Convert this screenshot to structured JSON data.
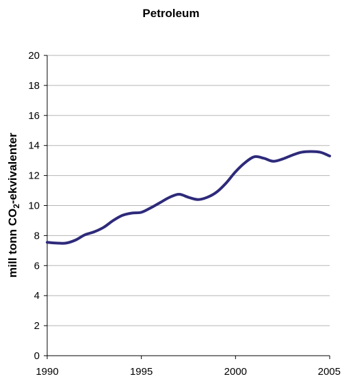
{
  "chart_data": {
    "type": "line",
    "title": "Petroleum",
    "ylabel_prefix": "mill tonn CO",
    "ylabel_subscript": "2",
    "ylabel_suffix": "-ekvivalenter",
    "xlabel": "",
    "xlim": [
      1990,
      2005
    ],
    "ylim": [
      0,
      20
    ],
    "x_ticks": [
      1990,
      1995,
      2000,
      2005
    ],
    "y_ticks": [
      0,
      2,
      4,
      6,
      8,
      10,
      12,
      14,
      16,
      18,
      20
    ],
    "grid": true,
    "line_color": "#2e2a7a",
    "series": [
      {
        "x": [
          1990,
          1990.5,
          1991,
          1991.5,
          1992,
          1992.5,
          1993,
          1993.5,
          1994,
          1994.5,
          1995,
          1995.5,
          1996,
          1996.5,
          1997,
          1997.5,
          1998,
          1998.5,
          1999,
          1999.5,
          2000,
          2000.5,
          2001,
          2001.5,
          2002,
          2002.5,
          2003,
          2003.5,
          2004,
          2004.5,
          2005
        ],
        "values": [
          7.55,
          7.5,
          7.5,
          7.7,
          8.05,
          8.25,
          8.55,
          9.0,
          9.35,
          9.5,
          9.55,
          9.85,
          10.2,
          10.55,
          10.75,
          10.55,
          10.4,
          10.55,
          10.9,
          11.5,
          12.25,
          12.85,
          13.25,
          13.15,
          12.95,
          13.1,
          13.35,
          13.55,
          13.6,
          13.55,
          13.3
        ]
      }
    ]
  }
}
